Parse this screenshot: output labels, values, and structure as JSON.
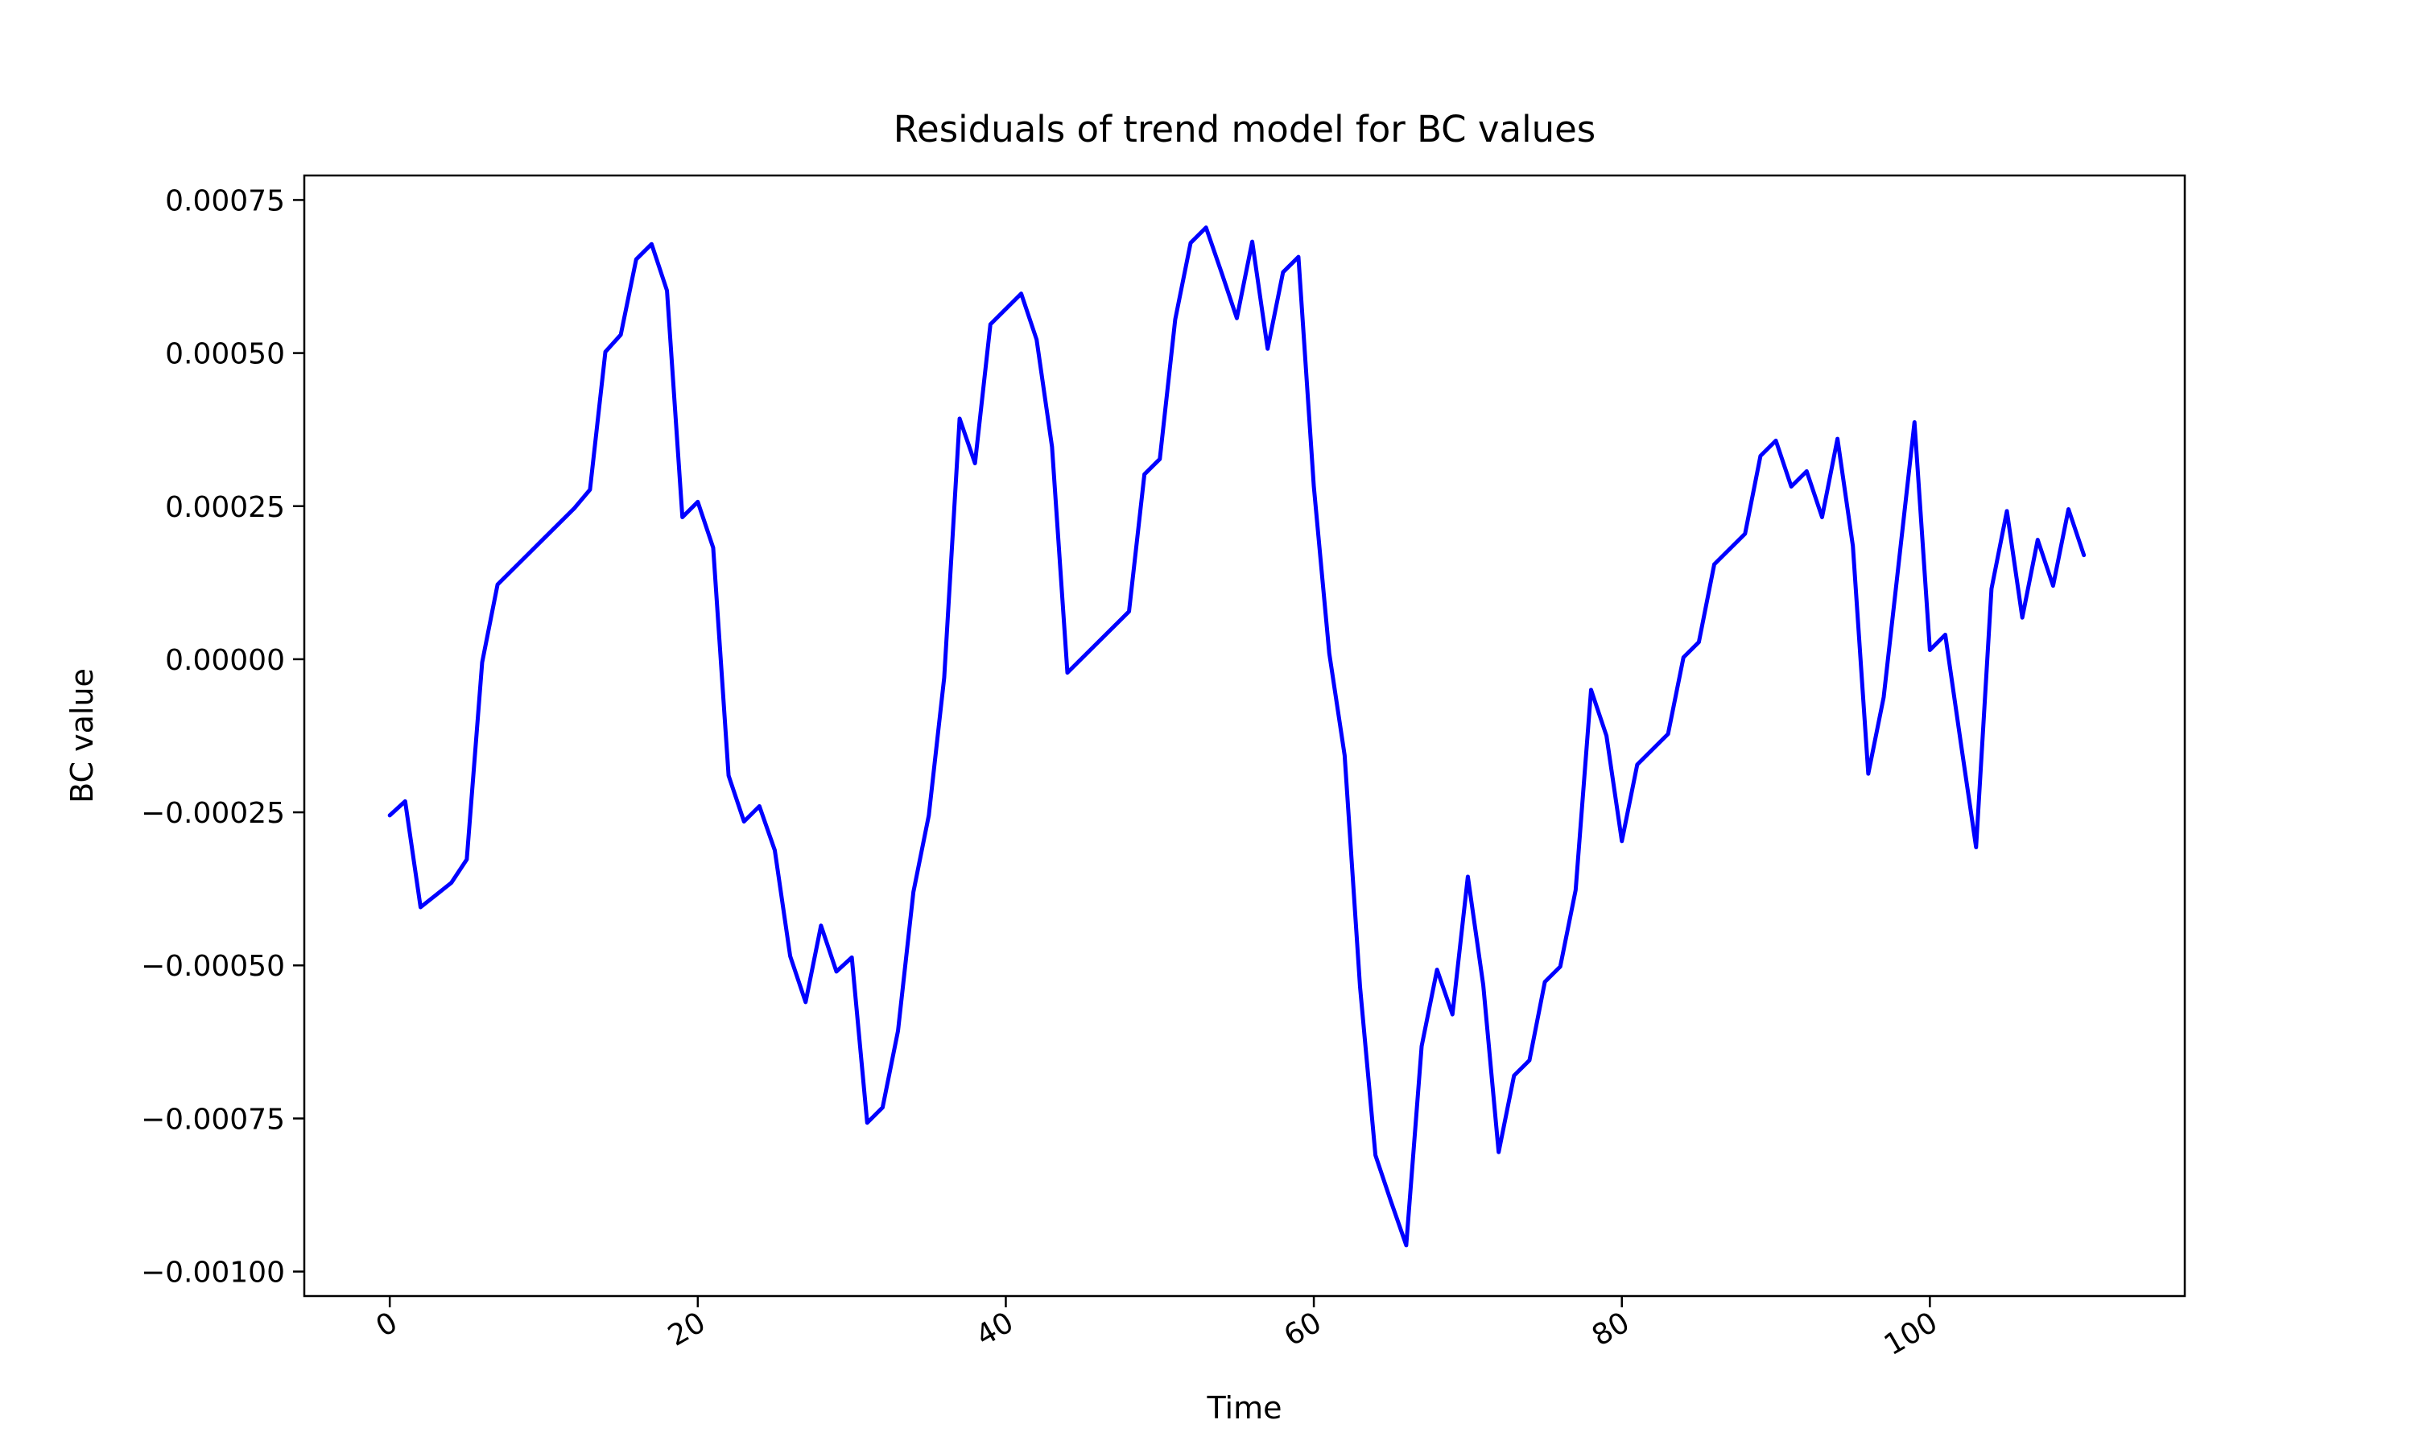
{
  "chart_data": {
    "type": "line",
    "title": "Residuals of trend model for BC values",
    "xlabel": "Time",
    "ylabel": "BC value",
    "xlim": [
      -5.55,
      116.55
    ],
    "ylim": [
      -0.00104,
      0.00079
    ],
    "x_ticks": [
      {
        "value": 0,
        "label": "0"
      },
      {
        "value": 20,
        "label": "20"
      },
      {
        "value": 40,
        "label": "40"
      },
      {
        "value": 60,
        "label": "60"
      },
      {
        "value": 80,
        "label": "80"
      },
      {
        "value": 100,
        "label": "100"
      }
    ],
    "y_ticks": [
      {
        "value": 0.00075,
        "label": "0.00075"
      },
      {
        "value": 0.0005,
        "label": "0.00050"
      },
      {
        "value": 0.00025,
        "label": "0.00025"
      },
      {
        "value": 0.0,
        "label": "0.00000"
      },
      {
        "value": -0.00025,
        "label": "−0.00025"
      },
      {
        "value": -0.0005,
        "label": "−0.00050"
      },
      {
        "value": -0.00075,
        "label": "−0.00075"
      },
      {
        "value": -0.001,
        "label": "−0.00100"
      }
    ],
    "grid": false,
    "legend": "none",
    "series": [
      {
        "color": "#0000ff",
        "x": [
          0,
          1,
          2,
          3,
          4,
          5,
          6,
          7,
          8,
          9,
          10,
          11,
          12,
          13,
          14,
          15,
          16,
          17,
          18,
          19,
          20,
          21,
          22,
          23,
          24,
          25,
          26,
          27,
          28,
          29,
          30,
          31,
          32,
          33,
          34,
          35,
          36,
          37,
          38,
          39,
          40,
          41,
          42,
          43,
          44,
          45,
          46,
          47,
          48,
          49,
          50,
          51,
          52,
          53,
          54,
          55,
          56,
          57,
          58,
          59,
          60,
          61,
          62,
          63,
          64,
          65,
          66,
          67,
          68,
          69,
          70,
          71,
          72,
          73,
          74,
          75,
          76,
          77,
          78,
          79,
          80,
          81,
          82,
          83,
          84,
          85,
          86,
          87,
          88,
          89,
          90,
          91,
          92,
          93,
          94,
          95,
          96,
          97,
          98,
          99,
          100,
          101,
          102,
          103,
          104,
          105,
          106,
          107,
          108,
          109,
          110
        ],
        "y": [
          -0.000255,
          -0.000232,
          -0.000405,
          -0.000385,
          -0.000365,
          -0.000327,
          -5e-06,
          0.000122,
          0.000147,
          0.000172,
          0.000197,
          0.000222,
          0.000247,
          0.000277,
          0.000502,
          0.00053,
          0.000653,
          0.000678,
          0.000602,
          0.000232,
          0.000257,
          0.000182,
          -0.00019,
          -0.000265,
          -0.00024,
          -0.000312,
          -0.000485,
          -0.00056,
          -0.000435,
          -0.00051,
          -0.000487,
          -0.000757,
          -0.000732,
          -0.000607,
          -0.00038,
          -0.000255,
          -3e-05,
          0.000393,
          0.00032,
          0.000547,
          0.000572,
          0.000597,
          0.000522,
          0.000347,
          -2.2e-05,
          3e-06,
          2.8e-05,
          5.3e-05,
          7.8e-05,
          0.000302,
          0.000327,
          0.000555,
          0.00068,
          0.000705,
          0.000632,
          0.000557,
          0.000682,
          0.000507,
          0.000632,
          0.000657,
          0.000282,
          1e-05,
          -0.000157,
          -0.000535,
          -0.00081,
          -0.000885,
          -0.000957,
          -0.000632,
          -0.000507,
          -0.00058,
          -0.000355,
          -0.000532,
          -0.000805,
          -0.00068,
          -0.000655,
          -0.000527,
          -0.000502,
          -0.000377,
          -5e-05,
          -0.000125,
          -0.000297,
          -0.000172,
          -0.000147,
          -0.000122,
          3e-06,
          2.8e-05,
          0.000155,
          0.00018,
          0.000205,
          0.000332,
          0.000357,
          0.000282,
          0.000307,
          0.000232,
          0.00036,
          0.000185,
          -0.000187,
          -6.2e-05,
          0.000162,
          0.000387,
          1.5e-05,
          4e-05,
          -0.000135,
          -0.000307,
          0.000115,
          0.000242,
          6.8e-05,
          0.000195,
          0.00012,
          0.000245,
          0.00017
        ]
      }
    ]
  }
}
